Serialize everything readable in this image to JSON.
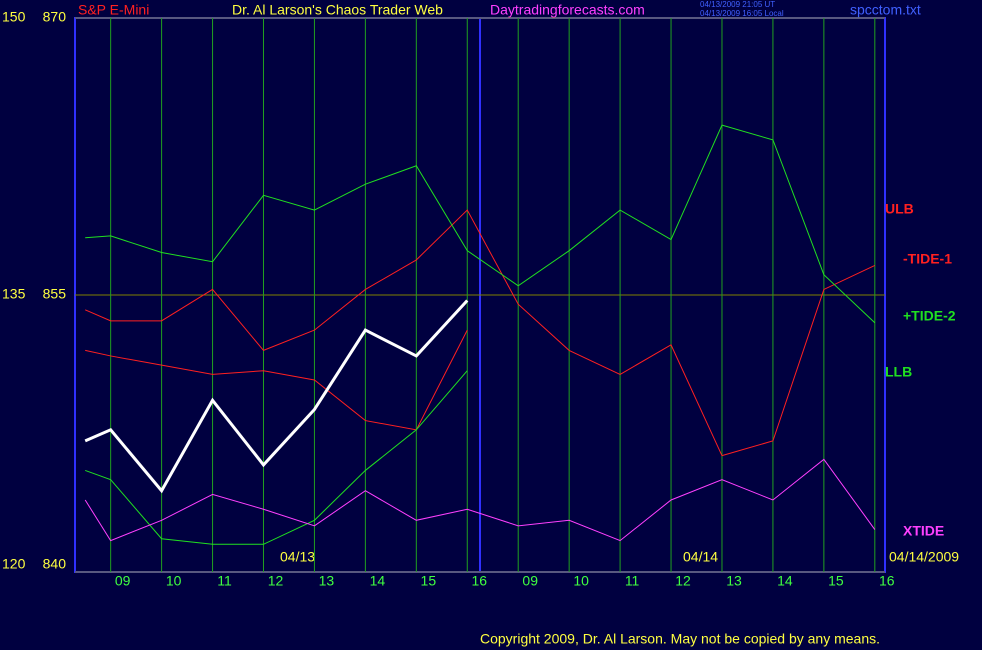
{
  "chart_data": {
    "type": "line",
    "symbol": "S&P E-Mini",
    "title": "Dr. Al Larson's Chaos Trader Web",
    "site": "Daytradingforecasts.com",
    "timestamps": [
      "04/13/2009 21:05 UT",
      "04/13/2009 16:05 Local"
    ],
    "file": "spcctom.txt",
    "dates": [
      "04/13",
      "04/14",
      "04/14/2009"
    ],
    "copyright": "Copyright 2009, Dr. Al Larson. May not be copied by any means.",
    "x": [
      -0.5,
      0,
      1,
      2,
      3,
      4,
      5,
      6,
      7,
      8,
      9,
      10,
      11,
      12,
      13,
      14,
      15
    ],
    "xlim": [
      -0.7,
      15.2
    ],
    "xticks": [
      {
        "value": 0,
        "label": "09"
      },
      {
        "value": 1,
        "label": "10"
      },
      {
        "value": 2,
        "label": "11"
      },
      {
        "value": 3,
        "label": "12"
      },
      {
        "value": 4,
        "label": "13"
      },
      {
        "value": 5,
        "label": "14"
      },
      {
        "value": 6,
        "label": "15"
      },
      {
        "value": 7,
        "label": "16"
      },
      {
        "value": 8,
        "label": "09"
      },
      {
        "value": 9,
        "label": "10"
      },
      {
        "value": 10,
        "label": "11"
      },
      {
        "value": 11,
        "label": "12"
      },
      {
        "value": 12,
        "label": "13"
      },
      {
        "value": 13,
        "label": "14"
      },
      {
        "value": 14,
        "label": "15"
      },
      {
        "value": 15,
        "label": "16"
      }
    ],
    "ylim": [
      840,
      870
    ],
    "yticks": [
      840,
      855,
      870
    ],
    "y2lim": [
      120,
      150
    ],
    "y2ticks": [
      120,
      135,
      150
    ],
    "grid": true,
    "price": {
      "color": "#ffffff",
      "values": [
        847.1,
        847.7,
        844.4,
        849.3,
        845.8,
        848.8,
        853.1,
        851.7,
        854.7,
        null,
        null,
        null,
        null,
        null,
        null,
        null,
        null
      ]
    },
    "series": [
      {
        "name": "ULB",
        "color": "#ff2020",
        "values": [
          854.2,
          853.6,
          853.6,
          855.3,
          852.0,
          853.1,
          855.3,
          856.9,
          859.6,
          854.5,
          852.0,
          850.7,
          852.3,
          846.3,
          847.1,
          855.3,
          856.6
        ]
      },
      {
        "name": "-TIDE-1",
        "color": "#ff2020",
        "values": [
          852.0,
          851.7,
          851.2,
          850.7,
          850.9,
          850.4,
          848.2,
          847.7,
          853.1,
          null,
          null,
          null,
          null,
          null,
          null,
          null,
          null
        ]
      },
      {
        "name": "+TIDE-2",
        "color": "#20e020",
        "values": [
          858.1,
          858.2,
          857.3,
          856.8,
          860.4,
          859.6,
          861.0,
          862.0,
          857.4,
          855.5,
          857.4,
          859.6,
          858.0,
          864.2,
          863.4,
          856.1,
          853.5
        ]
      },
      {
        "name": "LLB",
        "color": "#20e020",
        "values": [
          845.5,
          845.0,
          841.8,
          841.5,
          841.5,
          842.8,
          845.5,
          847.7,
          850.9,
          null,
          null,
          null,
          null,
          null,
          null,
          null,
          null
        ]
      },
      {
        "name": "XTIDE",
        "color": "#ff40ff",
        "axis": "y2",
        "values": [
          123.9,
          121.7,
          122.8,
          124.2,
          123.4,
          122.5,
          124.4,
          122.8,
          123.4,
          122.5,
          122.8,
          121.7,
          123.9,
          125.0,
          123.9,
          126.1,
          122.3
        ]
      }
    ]
  }
}
